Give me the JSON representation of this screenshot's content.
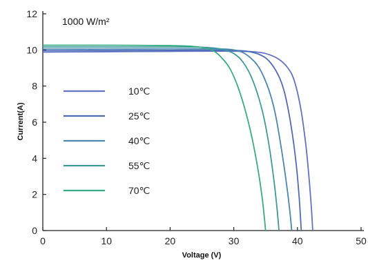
{
  "chart_data": {
    "type": "line",
    "title": "",
    "annotation": "1000 W/m²",
    "xlabel": "Voltage  (V)",
    "ylabel": "Current(A)",
    "xlim": [
      0,
      50
    ],
    "ylim": [
      0,
      12
    ],
    "xticks": [
      0,
      10,
      20,
      30,
      40,
      50
    ],
    "yticks": [
      0,
      2,
      4,
      6,
      8,
      10,
      12
    ],
    "grid": false,
    "legend_position": "left",
    "series": [
      {
        "name": "10℃",
        "color": "#5f72c4",
        "x": [
          0,
          10,
          20,
          25,
          30,
          33,
          35,
          37,
          38.5,
          39.5,
          40.5,
          41.3,
          41.8,
          42.2,
          42.4
        ],
        "y": [
          9.88,
          9.9,
          9.92,
          9.93,
          9.93,
          9.9,
          9.8,
          9.5,
          9.0,
          8.3,
          6.8,
          4.8,
          3.0,
          1.2,
          0
        ]
      },
      {
        "name": "25℃",
        "color": "#4f6bb8",
        "x": [
          0,
          10,
          20,
          25,
          30,
          32,
          34,
          35.5,
          37,
          38,
          39,
          39.8,
          40.3,
          40.6
        ],
        "y": [
          9.96,
          9.97,
          9.98,
          9.99,
          9.98,
          9.93,
          9.75,
          9.4,
          8.6,
          7.6,
          5.8,
          3.7,
          1.7,
          0
        ]
      },
      {
        "name": "40℃",
        "color": "#4a86b3",
        "x": [
          0,
          10,
          20,
          25,
          29,
          31,
          32.5,
          34,
          35.5,
          36.5,
          37.4,
          38.2,
          38.8,
          39.1
        ],
        "y": [
          10.05,
          10.05,
          10.06,
          10.06,
          10.04,
          9.92,
          9.6,
          9.0,
          7.8,
          6.5,
          4.7,
          2.8,
          1.1,
          0
        ]
      },
      {
        "name": "55℃",
        "color": "#3e9a9a",
        "x": [
          0,
          10,
          20,
          25,
          28,
          30,
          31.5,
          33,
          34.5,
          35.5,
          36.3,
          36.8,
          37.1
        ],
        "y": [
          10.16,
          10.16,
          10.16,
          10.15,
          10.05,
          9.8,
          9.3,
          8.3,
          6.6,
          4.8,
          2.8,
          1.2,
          0
        ]
      },
      {
        "name": "70℃",
        "color": "#36ab84",
        "x": [
          0,
          10,
          20,
          24,
          26.5,
          28,
          29.5,
          31,
          32.5,
          33.7,
          34.5,
          35
        ],
        "y": [
          10.26,
          10.26,
          10.24,
          10.18,
          10.0,
          9.6,
          8.9,
          7.6,
          5.7,
          3.6,
          1.7,
          0
        ]
      }
    ]
  }
}
